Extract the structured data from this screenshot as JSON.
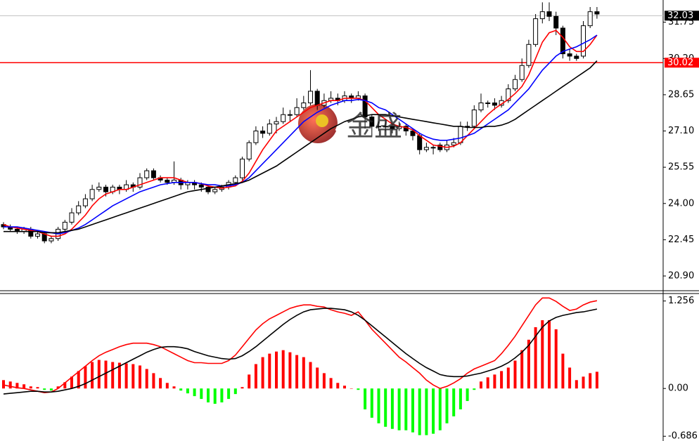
{
  "chart_data": [
    {
      "type": "candlestick",
      "ohlc": [
        [
          23.1,
          23.2,
          22.9,
          23.0
        ],
        [
          23.0,
          23.1,
          22.8,
          22.9
        ],
        [
          22.9,
          23.0,
          22.7,
          22.8
        ],
        [
          22.8,
          23.0,
          22.7,
          22.9
        ],
        [
          22.9,
          23.0,
          22.5,
          22.6
        ],
        [
          22.6,
          22.8,
          22.5,
          22.7
        ],
        [
          22.7,
          22.8,
          22.3,
          22.4
        ],
        [
          22.4,
          22.6,
          22.3,
          22.5
        ],
        [
          22.5,
          23.0,
          22.4,
          22.9
        ],
        [
          22.9,
          23.3,
          22.8,
          23.2
        ],
        [
          23.2,
          23.8,
          23.1,
          23.6
        ],
        [
          23.6,
          24.1,
          23.5,
          23.9
        ],
        [
          23.9,
          24.4,
          23.8,
          24.2
        ],
        [
          24.2,
          24.8,
          24.1,
          24.6
        ],
        [
          24.6,
          24.9,
          24.5,
          24.7
        ],
        [
          24.7,
          24.8,
          24.3,
          24.5
        ],
        [
          24.5,
          24.8,
          24.4,
          24.7
        ],
        [
          24.7,
          24.8,
          24.4,
          24.6
        ],
        [
          24.6,
          25.0,
          24.5,
          24.8
        ],
        [
          24.8,
          24.9,
          24.5,
          24.7
        ],
        [
          24.7,
          25.3,
          24.6,
          25.1
        ],
        [
          25.1,
          25.5,
          25.0,
          25.4
        ],
        [
          25.4,
          25.5,
          25.0,
          25.1
        ],
        [
          25.1,
          25.2,
          24.9,
          25.0
        ],
        [
          25.0,
          25.1,
          24.8,
          24.9
        ],
        [
          24.9,
          25.8,
          24.8,
          25.0
        ],
        [
          25.0,
          25.1,
          24.6,
          24.8
        ],
        [
          24.8,
          25.0,
          24.6,
          24.9
        ],
        [
          24.9,
          25.0,
          24.6,
          24.8
        ],
        [
          24.8,
          24.9,
          24.5,
          24.7
        ],
        [
          24.7,
          24.8,
          24.4,
          24.5
        ],
        [
          24.5,
          24.7,
          24.4,
          24.6
        ],
        [
          24.6,
          24.8,
          24.5,
          24.7
        ],
        [
          24.7,
          25.0,
          24.6,
          24.9
        ],
        [
          24.9,
          25.2,
          24.8,
          25.1
        ],
        [
          25.1,
          26.0,
          25.0,
          25.9
        ],
        [
          25.9,
          26.7,
          25.8,
          26.6
        ],
        [
          26.6,
          27.3,
          26.5,
          27.1
        ],
        [
          27.1,
          27.3,
          26.8,
          27.0
        ],
        [
          27.0,
          27.6,
          26.9,
          27.4
        ],
        [
          27.4,
          27.7,
          27.0,
          27.5
        ],
        [
          27.5,
          28.1,
          27.4,
          27.8
        ],
        [
          27.8,
          28.0,
          27.5,
          27.8
        ],
        [
          27.8,
          28.5,
          27.7,
          28.1
        ],
        [
          28.1,
          28.6,
          28.0,
          28.3
        ],
        [
          28.3,
          29.7,
          28.2,
          28.8
        ],
        [
          28.8,
          28.9,
          28.0,
          28.2
        ],
        [
          28.2,
          28.7,
          28.1,
          28.4
        ],
        [
          28.4,
          28.8,
          28.3,
          28.5
        ],
        [
          28.5,
          28.7,
          28.2,
          28.4
        ],
        [
          28.4,
          28.8,
          28.3,
          28.6
        ],
        [
          28.6,
          28.7,
          28.3,
          28.5
        ],
        [
          28.5,
          28.8,
          28.4,
          28.6
        ],
        [
          28.6,
          28.7,
          27.2,
          27.7
        ],
        [
          27.7,
          27.8,
          26.9,
          27.3
        ],
        [
          27.3,
          27.5,
          27.1,
          27.3
        ],
        [
          27.3,
          27.6,
          27.1,
          27.3
        ],
        [
          27.3,
          27.4,
          27.0,
          27.2
        ],
        [
          27.2,
          27.5,
          27.1,
          27.3
        ],
        [
          27.3,
          27.4,
          26.9,
          27.1
        ],
        [
          27.1,
          27.2,
          26.7,
          26.9
        ],
        [
          26.9,
          27.0,
          26.1,
          26.3
        ],
        [
          26.3,
          26.6,
          26.2,
          26.4
        ],
        [
          26.4,
          26.5,
          26.1,
          26.4
        ],
        [
          26.5,
          26.6,
          26.2,
          26.3
        ],
        [
          26.3,
          26.7,
          26.2,
          26.5
        ],
        [
          26.5,
          26.8,
          26.4,
          26.6
        ],
        [
          26.6,
          27.5,
          26.5,
          27.3
        ],
        [
          27.3,
          27.5,
          27.1,
          27.3
        ],
        [
          27.3,
          28.2,
          27.2,
          28.0
        ],
        [
          28.0,
          28.7,
          27.9,
          28.3
        ],
        [
          28.3,
          28.4,
          28.1,
          28.3
        ],
        [
          28.3,
          28.5,
          28.0,
          28.2
        ],
        [
          28.2,
          28.6,
          28.1,
          28.4
        ],
        [
          28.4,
          29.1,
          28.3,
          28.9
        ],
        [
          28.9,
          29.5,
          28.8,
          29.3
        ],
        [
          29.3,
          30.2,
          29.2,
          29.9
        ],
        [
          29.9,
          31.0,
          29.8,
          30.8
        ],
        [
          30.8,
          32.1,
          30.7,
          31.9
        ],
        [
          31.9,
          32.6,
          31.7,
          32.2
        ],
        [
          32.2,
          32.6,
          31.8,
          32.0
        ],
        [
          32.0,
          32.2,
          31.2,
          31.5
        ],
        [
          31.5,
          31.6,
          30.2,
          30.4
        ],
        [
          30.4,
          30.6,
          30.1,
          30.3
        ],
        [
          30.3,
          30.4,
          30.1,
          30.2
        ],
        [
          30.3,
          31.8,
          30.2,
          31.6
        ],
        [
          31.6,
          32.4,
          31.5,
          32.2
        ],
        [
          32.2,
          32.4,
          31.9,
          32.1
        ]
      ],
      "up_color": "#ffffff",
      "down_color": "#000000",
      "series": [
        {
          "color": "#ff0000",
          "values": [
            23.1,
            23.0,
            22.95,
            22.9,
            22.85,
            22.8,
            22.7,
            22.6,
            22.6,
            22.7,
            22.9,
            23.2,
            23.5,
            23.9,
            24.2,
            24.4,
            24.5,
            24.6,
            24.6,
            24.7,
            24.8,
            24.9,
            25.0,
            25.1,
            25.1,
            25.1,
            25.0,
            24.9,
            24.9,
            24.85,
            24.75,
            24.7,
            24.65,
            24.7,
            24.75,
            24.95,
            25.3,
            25.8,
            26.3,
            26.7,
            27.1,
            27.3,
            27.5,
            27.7,
            27.9,
            28.1,
            28.2,
            28.3,
            28.4,
            28.4,
            28.5,
            28.5,
            28.5,
            28.4,
            28.1,
            27.8,
            27.6,
            27.4,
            27.3,
            27.25,
            27.15,
            26.9,
            26.7,
            26.5,
            26.45,
            26.4,
            26.45,
            26.6,
            26.9,
            27.2,
            27.5,
            27.8,
            28.05,
            28.25,
            28.45,
            28.7,
            29.0,
            29.5,
            30.2,
            30.9,
            31.3,
            31.4,
            31.1,
            30.7,
            30.5,
            30.5,
            30.8,
            31.2
          ]
        },
        {
          "color": "#0000ff",
          "values": [
            23.0,
            23.0,
            23.0,
            22.95,
            22.9,
            22.85,
            22.8,
            22.75,
            22.7,
            22.75,
            22.85,
            22.95,
            23.1,
            23.3,
            23.5,
            23.7,
            23.9,
            24.05,
            24.2,
            24.35,
            24.5,
            24.6,
            24.7,
            24.8,
            24.85,
            24.9,
            24.9,
            24.9,
            24.9,
            24.85,
            24.8,
            24.8,
            24.75,
            24.75,
            24.8,
            24.9,
            25.1,
            25.4,
            25.7,
            26.0,
            26.3,
            26.6,
            26.9,
            27.2,
            27.5,
            27.7,
            27.9,
            28.05,
            28.2,
            28.3,
            28.4,
            28.4,
            28.45,
            28.4,
            28.3,
            28.1,
            28.0,
            27.8,
            27.6,
            27.4,
            27.2,
            27.0,
            26.85,
            26.75,
            26.7,
            26.7,
            26.75,
            26.8,
            26.9,
            27.0,
            27.2,
            27.4,
            27.6,
            27.8,
            28.0,
            28.3,
            28.6,
            28.9,
            29.3,
            29.7,
            30.0,
            30.3,
            30.5,
            30.6,
            30.7,
            30.85,
            31.0,
            31.2
          ]
        },
        {
          "color": "#000000",
          "values": [
            22.8,
            22.8,
            22.8,
            22.8,
            22.8,
            22.8,
            22.75,
            22.75,
            22.75,
            22.8,
            22.85,
            22.9,
            23.0,
            23.1,
            23.2,
            23.3,
            23.4,
            23.5,
            23.6,
            23.7,
            23.8,
            23.9,
            24.0,
            24.1,
            24.2,
            24.3,
            24.4,
            24.5,
            24.55,
            24.6,
            24.65,
            24.7,
            24.75,
            24.8,
            24.85,
            24.9,
            25.0,
            25.15,
            25.3,
            25.45,
            25.6,
            25.8,
            26.0,
            26.2,
            26.4,
            26.6,
            26.8,
            27.0,
            27.2,
            27.35,
            27.5,
            27.6,
            27.7,
            27.75,
            27.8,
            27.8,
            27.8,
            27.75,
            27.7,
            27.65,
            27.6,
            27.55,
            27.5,
            27.45,
            27.4,
            27.35,
            27.3,
            27.3,
            27.25,
            27.25,
            27.25,
            27.3,
            27.3,
            27.35,
            27.45,
            27.6,
            27.8,
            28.0,
            28.2,
            28.4,
            28.6,
            28.8,
            29.0,
            29.2,
            29.4,
            29.6,
            29.8,
            30.1
          ]
        }
      ],
      "ylim": [
        20.3,
        32.64
      ],
      "yticks": [
        31.75,
        {
          "value": 30.2,
          "label": "30.20"
        },
        28.65,
        {
          "value": 27.1,
          "label": "27.10"
        },
        25.55,
        {
          "value": 24,
          "label": "24.00"
        },
        22.45,
        {
          "value": 20.9,
          "label": "20.90"
        }
      ],
      "price_lines": [
        {
          "value": 32.03,
          "color": "#c0c0c0",
          "label_bg": "#000000"
        },
        {
          "value": 30.02,
          "color": "#ff0000",
          "label_bg": "#ff0000"
        }
      ],
      "watermark": "金盛"
    },
    {
      "type": "macd",
      "bars": [
        0.12,
        0.1,
        0.08,
        0.06,
        0.03,
        0.02,
        -0.02,
        -0.03,
        0.03,
        0.09,
        0.17,
        0.25,
        0.32,
        0.38,
        0.41,
        0.4,
        0.38,
        0.37,
        0.36,
        0.35,
        0.33,
        0.28,
        0.22,
        0.15,
        0.08,
        0.03,
        -0.03,
        -0.07,
        -0.11,
        -0.15,
        -0.2,
        -0.22,
        -0.2,
        -0.15,
        -0.08,
        0.02,
        0.2,
        0.35,
        0.45,
        0.5,
        0.53,
        0.55,
        0.52,
        0.48,
        0.45,
        0.38,
        0.3,
        0.22,
        0.15,
        0.08,
        0.04,
        0.0,
        -0.02,
        -0.3,
        -0.42,
        -0.5,
        -0.55,
        -0.58,
        -0.6,
        -0.6,
        -0.63,
        -0.67,
        -0.67,
        -0.65,
        -0.6,
        -0.5,
        -0.4,
        -0.3,
        -0.18,
        -0.02,
        0.1,
        0.16,
        0.2,
        0.25,
        0.3,
        0.4,
        0.55,
        0.7,
        0.88,
        0.98,
        0.98,
        0.85,
        0.5,
        0.3,
        0.12,
        0.17,
        0.22,
        0.24
      ],
      "bar_colors": [
        "#ff0000",
        "#00ff00"
      ],
      "series": [
        {
          "color": "#ff0000",
          "values": [
            0.05,
            0.03,
            0.01,
            0.0,
            -0.02,
            -0.04,
            -0.06,
            -0.05,
            0.0,
            0.08,
            0.16,
            0.24,
            0.32,
            0.4,
            0.47,
            0.52,
            0.56,
            0.6,
            0.63,
            0.65,
            0.65,
            0.65,
            0.63,
            0.6,
            0.55,
            0.5,
            0.45,
            0.4,
            0.37,
            0.37,
            0.36,
            0.36,
            0.36,
            0.4,
            0.48,
            0.6,
            0.72,
            0.84,
            0.93,
            1.0,
            1.05,
            1.1,
            1.15,
            1.18,
            1.2,
            1.2,
            1.18,
            1.17,
            1.13,
            1.1,
            1.08,
            1.05,
            1.1,
            0.98,
            0.85,
            0.75,
            0.65,
            0.55,
            0.45,
            0.38,
            0.3,
            0.22,
            0.12,
            0.05,
            0.0,
            0.03,
            0.08,
            0.14,
            0.22,
            0.28,
            0.32,
            0.36,
            0.4,
            0.5,
            0.62,
            0.75,
            0.9,
            1.05,
            1.2,
            1.3,
            1.3,
            1.25,
            1.18,
            1.12,
            1.14,
            1.2,
            1.24,
            1.26
          ]
        },
        {
          "color": "#000000",
          "values": [
            -0.08,
            -0.07,
            -0.06,
            -0.05,
            -0.04,
            -0.04,
            -0.05,
            -0.05,
            -0.04,
            -0.02,
            0.0,
            0.03,
            0.07,
            0.12,
            0.17,
            0.22,
            0.27,
            0.32,
            0.37,
            0.42,
            0.47,
            0.52,
            0.56,
            0.59,
            0.6,
            0.6,
            0.59,
            0.57,
            0.53,
            0.5,
            0.47,
            0.45,
            0.43,
            0.42,
            0.43,
            0.47,
            0.53,
            0.6,
            0.68,
            0.76,
            0.84,
            0.92,
            0.99,
            1.05,
            1.1,
            1.13,
            1.14,
            1.15,
            1.15,
            1.14,
            1.13,
            1.1,
            1.05,
            0.98,
            0.9,
            0.82,
            0.74,
            0.66,
            0.58,
            0.5,
            0.43,
            0.36,
            0.3,
            0.25,
            0.2,
            0.18,
            0.17,
            0.17,
            0.18,
            0.2,
            0.22,
            0.25,
            0.28,
            0.32,
            0.37,
            0.44,
            0.52,
            0.62,
            0.75,
            0.88,
            0.97,
            1.02,
            1.05,
            1.07,
            1.09,
            1.1,
            1.12,
            1.14
          ]
        }
      ],
      "ylim": [
        -0.744,
        1.343
      ],
      "yticks": [
        1.256,
        {
          "value": 0,
          "label": "0.00"
        },
        -0.686
      ]
    }
  ]
}
